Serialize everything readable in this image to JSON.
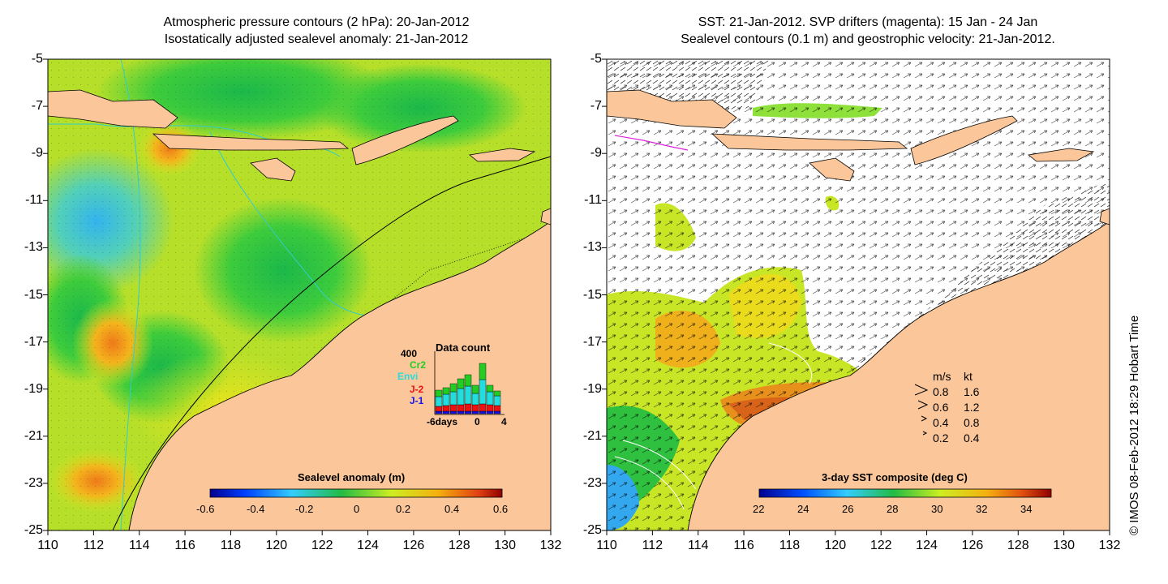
{
  "left_panel": {
    "title_line1": "Atmospheric pressure contours (2 hPa): 20-Jan-2012",
    "title_line2": "Isostatically adjusted sealevel anomaly: 21-Jan-2012",
    "y_ticks": [
      "-5",
      "-7",
      "-9",
      "-11",
      "-13",
      "-15",
      "-17",
      "-19",
      "-21",
      "-23",
      "-25"
    ],
    "x_ticks": [
      "110",
      "112",
      "114",
      "116",
      "118",
      "120",
      "122",
      "124",
      "126",
      "128",
      "130",
      "132"
    ],
    "colorbar": {
      "title": "Sealevel anomaly (m)",
      "ticks": [
        "-0.6",
        "-0.4",
        "-0.2",
        "0",
        "0.2",
        "0.4",
        "0.6"
      ],
      "range": [
        -0.6,
        0.6
      ]
    },
    "data_count": {
      "title": "Data count",
      "scale_label": "400",
      "missions": [
        {
          "name": "Cr2",
          "color": "#22cc22"
        },
        {
          "name": "Envi",
          "color": "#22dddd"
        },
        {
          "name": "J-2",
          "color": "#ee1111"
        },
        {
          "name": "J-1",
          "color": "#1111ee"
        }
      ],
      "x_labels": [
        "-6days",
        "0",
        "4"
      ]
    }
  },
  "right_panel": {
    "title_line1": "SST: 21-Jan-2012. SVP drifters (magenta): 15 Jan - 24 Jan",
    "title_line2": "Sealevel contours (0.1 m) and geostrophic velocity: 21-Jan-2012.",
    "y_ticks": [
      "-5",
      "-7",
      "-9",
      "-11",
      "-13",
      "-15",
      "-17",
      "-19",
      "-21",
      "-23",
      "-25"
    ],
    "x_ticks": [
      "110",
      "112",
      "114",
      "116",
      "118",
      "120",
      "122",
      "124",
      "126",
      "128",
      "130",
      "132"
    ],
    "colorbar": {
      "title": "3-day SST composite (deg C)",
      "ticks": [
        "22",
        "24",
        "26",
        "28",
        "30",
        "32",
        "34"
      ],
      "range": [
        22,
        35
      ]
    },
    "velocity_legend": {
      "header_ms": "m/s",
      "header_kt": "kt",
      "rows": [
        {
          "ms": "0.8",
          "kt": "1.6"
        },
        {
          "ms": "0.6",
          "kt": "1.2"
        },
        {
          "ms": "0.4",
          "kt": "0.8"
        },
        {
          "ms": "0.2",
          "kt": "0.4"
        }
      ]
    }
  },
  "credit": "© IMOS 08-Feb-2012 18:29 Hobart Time",
  "colors": {
    "land": "#fbc79a",
    "coast_contour": "#000000",
    "bathymetry": "#33cccc",
    "drifters": "#dd22dd"
  }
}
